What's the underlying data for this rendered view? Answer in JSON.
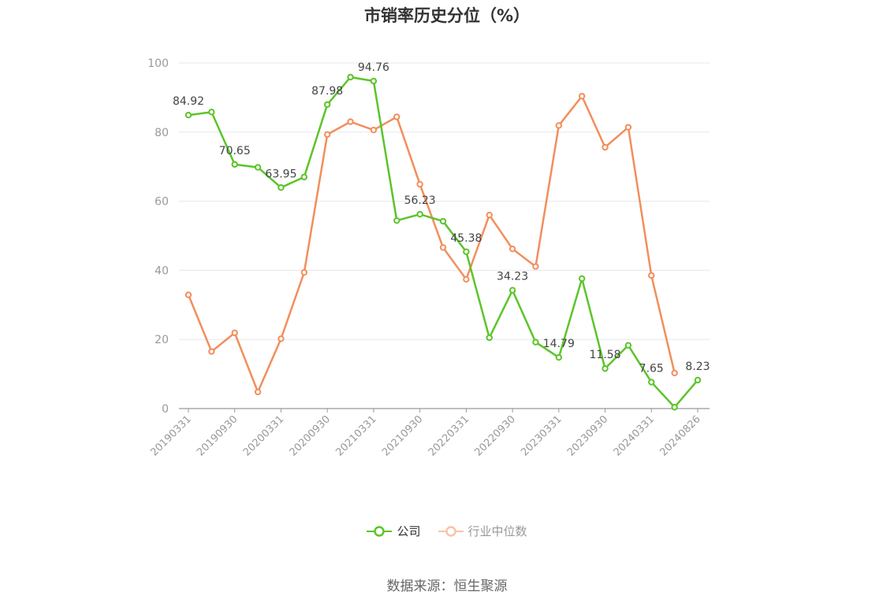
{
  "title": "市销率历史分位（%）",
  "source": "数据来源：恒生聚源",
  "chart_data": {
    "type": "line",
    "title": "市销率历史分位（%）",
    "ylim": [
      0,
      100
    ],
    "yticks": [
      0,
      20,
      40,
      60,
      80,
      100
    ],
    "x": [
      "20190331",
      "20190630",
      "20190930",
      "20191231",
      "20200331",
      "20200630",
      "20200930",
      "20201231",
      "20210331",
      "20210630",
      "20210930",
      "20211231",
      "20220331",
      "20220630",
      "20220930",
      "20221231",
      "20230331",
      "20230630",
      "20230930",
      "20231231",
      "20240331",
      "20240630",
      "20240826"
    ],
    "xticks_shown": [
      "20190331",
      "20190930",
      "20200331",
      "20200930",
      "20210331",
      "20210930",
      "20220331",
      "20220930",
      "20230331",
      "20230930",
      "20240331",
      "20240826"
    ],
    "grid": "horizontal",
    "legend_position": "bottom",
    "series": [
      {
        "name": "公司",
        "color": "#5cc42a",
        "values": [
          84.92,
          85.8,
          70.65,
          69.8,
          63.95,
          67.0,
          87.98,
          95.9,
          94.76,
          54.4,
          56.23,
          54.2,
          45.38,
          20.5,
          34.23,
          19.2,
          14.79,
          37.6,
          11.58,
          18.3,
          7.65,
          0.4,
          8.23
        ],
        "labels": {
          "0": "84.92",
          "2": "70.65",
          "4": "63.95",
          "6": "87.98",
          "8": "94.76",
          "10": "56.23",
          "12": "45.38",
          "14": "34.23",
          "16": "14.79",
          "18": "11.58",
          "20": "7.65",
          "22": "8.23"
        }
      },
      {
        "name": "行业中位数",
        "color": "#f28e5c",
        "values": [
          32.9,
          16.5,
          21.9,
          4.8,
          20.2,
          39.4,
          79.3,
          83.0,
          80.6,
          84.4,
          64.9,
          46.6,
          37.4,
          56.0,
          46.2,
          41.1,
          81.9,
          90.4,
          75.6,
          81.4,
          38.5,
          10.3,
          null
        ]
      }
    ]
  }
}
